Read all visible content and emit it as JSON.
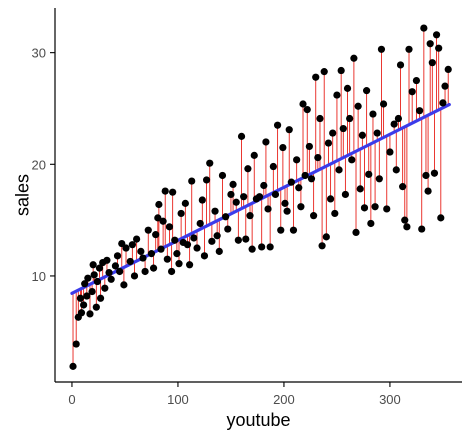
{
  "chart_data": {
    "type": "scatter",
    "title": "",
    "xlabel": "youtube",
    "ylabel": "sales",
    "xlim": [
      -16,
      368
    ],
    "ylim": [
      0.5,
      34
    ],
    "x_ticks": [
      0,
      100,
      200,
      300
    ],
    "y_ticks": [
      10,
      20,
      30
    ],
    "x_tick_labels": [
      "0",
      "100",
      "200",
      "300"
    ],
    "y_tick_labels": [
      "10",
      "20",
      "30"
    ],
    "grid": false,
    "legend": "none",
    "fit_line": {
      "intercept": 8.44,
      "slope": 0.0475,
      "x_range": [
        0,
        356
      ]
    },
    "points": [
      [
        1,
        1.9
      ],
      [
        4,
        3.9
      ],
      [
        6,
        6.3
      ],
      [
        8,
        8.0
      ],
      [
        9,
        6.7
      ],
      [
        11,
        7.4
      ],
      [
        12,
        9.3
      ],
      [
        14,
        8.2
      ],
      [
        15,
        9.8
      ],
      [
        17,
        6.6
      ],
      [
        19,
        8.6
      ],
      [
        20,
        11.0
      ],
      [
        21,
        10.1
      ],
      [
        23,
        7.2
      ],
      [
        24,
        9.5
      ],
      [
        26,
        10.7
      ],
      [
        27,
        8.0
      ],
      [
        29,
        11.2
      ],
      [
        31,
        8.9
      ],
      [
        33,
        11.4
      ],
      [
        35,
        10.3
      ],
      [
        37,
        9.7
      ],
      [
        41,
        10.9
      ],
      [
        43,
        11.8
      ],
      [
        45,
        10.4
      ],
      [
        47,
        12.9
      ],
      [
        49,
        9.2
      ],
      [
        51,
        12.5
      ],
      [
        55,
        11.3
      ],
      [
        57,
        12.8
      ],
      [
        59,
        10.0
      ],
      [
        61,
        13.3
      ],
      [
        65,
        12.2
      ],
      [
        67,
        11.6
      ],
      [
        69,
        10.4
      ],
      [
        72,
        14.1
      ],
      [
        75,
        12.0
      ],
      [
        77,
        10.7
      ],
      [
        79,
        13.7
      ],
      [
        81,
        15.2
      ],
      [
        82,
        16.4
      ],
      [
        84,
        12.4
      ],
      [
        86,
        14.9
      ],
      [
        88,
        17.6
      ],
      [
        90,
        11.5
      ],
      [
        92,
        14.4
      ],
      [
        94,
        10.4
      ],
      [
        95,
        17.5
      ],
      [
        97,
        13.2
      ],
      [
        99,
        12.0
      ],
      [
        101,
        11.1
      ],
      [
        103,
        15.6
      ],
      [
        105,
        13.0
      ],
      [
        107,
        16.5
      ],
      [
        109,
        12.8
      ],
      [
        111,
        11.0
      ],
      [
        113,
        18.5
      ],
      [
        115,
        13.4
      ],
      [
        118,
        12.5
      ],
      [
        121,
        14.7
      ],
      [
        123,
        16.8
      ],
      [
        125,
        11.8
      ],
      [
        127,
        18.6
      ],
      [
        130,
        20.1
      ],
      [
        132,
        13.1
      ],
      [
        135,
        15.8
      ],
      [
        137,
        13.6
      ],
      [
        139,
        12.2
      ],
      [
        142,
        19.0
      ],
      [
        145,
        15.3
      ],
      [
        147,
        14.2
      ],
      [
        150,
        17.3
      ],
      [
        152,
        18.2
      ],
      [
        155,
        16.6
      ],
      [
        157,
        13.2
      ],
      [
        160,
        22.5
      ],
      [
        162,
        17.1
      ],
      [
        164,
        13.3
      ],
      [
        166,
        19.6
      ],
      [
        168,
        15.4
      ],
      [
        170,
        12.4
      ],
      [
        172,
        20.8
      ],
      [
        174,
        16.9
      ],
      [
        177,
        17.1
      ],
      [
        179,
        12.6
      ],
      [
        181,
        18.1
      ],
      [
        183,
        22.0
      ],
      [
        185,
        16.0
      ],
      [
        187,
        12.6
      ],
      [
        190,
        19.8
      ],
      [
        192,
        17.3
      ],
      [
        194,
        23.5
      ],
      [
        197,
        14.1
      ],
      [
        199,
        21.5
      ],
      [
        201,
        16.5
      ],
      [
        203,
        15.8
      ],
      [
        205,
        23.1
      ],
      [
        207,
        18.4
      ],
      [
        209,
        14.1
      ],
      [
        212,
        20.4
      ],
      [
        214,
        17.9
      ],
      [
        216,
        16.2
      ],
      [
        218,
        25.4
      ],
      [
        220,
        19.0
      ],
      [
        222,
        24.9
      ],
      [
        224,
        21.6
      ],
      [
        226,
        18.7
      ],
      [
        228,
        15.4
      ],
      [
        230,
        27.8
      ],
      [
        232,
        20.6
      ],
      [
        234,
        24.1
      ],
      [
        236,
        12.7
      ],
      [
        238,
        28.3
      ],
      [
        240,
        13.5
      ],
      [
        242,
        21.9
      ],
      [
        244,
        16.9
      ],
      [
        246,
        22.8
      ],
      [
        248,
        15.6
      ],
      [
        250,
        26.2
      ],
      [
        252,
        19.5
      ],
      [
        254,
        28.4
      ],
      [
        256,
        23.2
      ],
      [
        258,
        17.3
      ],
      [
        260,
        26.8
      ],
      [
        262,
        24.1
      ],
      [
        264,
        20.4
      ],
      [
        266,
        29.5
      ],
      [
        268,
        13.9
      ],
      [
        270,
        25.2
      ],
      [
        272,
        17.8
      ],
      [
        274,
        22.6
      ],
      [
        276,
        16.1
      ],
      [
        278,
        26.6
      ],
      [
        280,
        19.1
      ],
      [
        282,
        14.7
      ],
      [
        284,
        24.5
      ],
      [
        286,
        16.2
      ],
      [
        288,
        22.8
      ],
      [
        290,
        18.7
      ],
      [
        292,
        30.3
      ],
      [
        294,
        25.4
      ],
      [
        297,
        16.0
      ],
      [
        300,
        21.1
      ],
      [
        304,
        23.6
      ],
      [
        306,
        19.5
      ],
      [
        308,
        24.1
      ],
      [
        310,
        28.9
      ],
      [
        312,
        18.0
      ],
      [
        314,
        15.0
      ],
      [
        316,
        14.4
      ],
      [
        318,
        30.3
      ],
      [
        321,
        26.5
      ],
      [
        325,
        27.5
      ],
      [
        328,
        24.8
      ],
      [
        330,
        14.2
      ],
      [
        332,
        32.2
      ],
      [
        334,
        19.0
      ],
      [
        336,
        17.6
      ],
      [
        338,
        30.8
      ],
      [
        340,
        29.1
      ],
      [
        342,
        19.2
      ],
      [
        344,
        31.6
      ],
      [
        346,
        30.4
      ],
      [
        348,
        15.2
      ],
      [
        350,
        25.5
      ],
      [
        352,
        27.0
      ],
      [
        355,
        28.5
      ]
    ]
  }
}
